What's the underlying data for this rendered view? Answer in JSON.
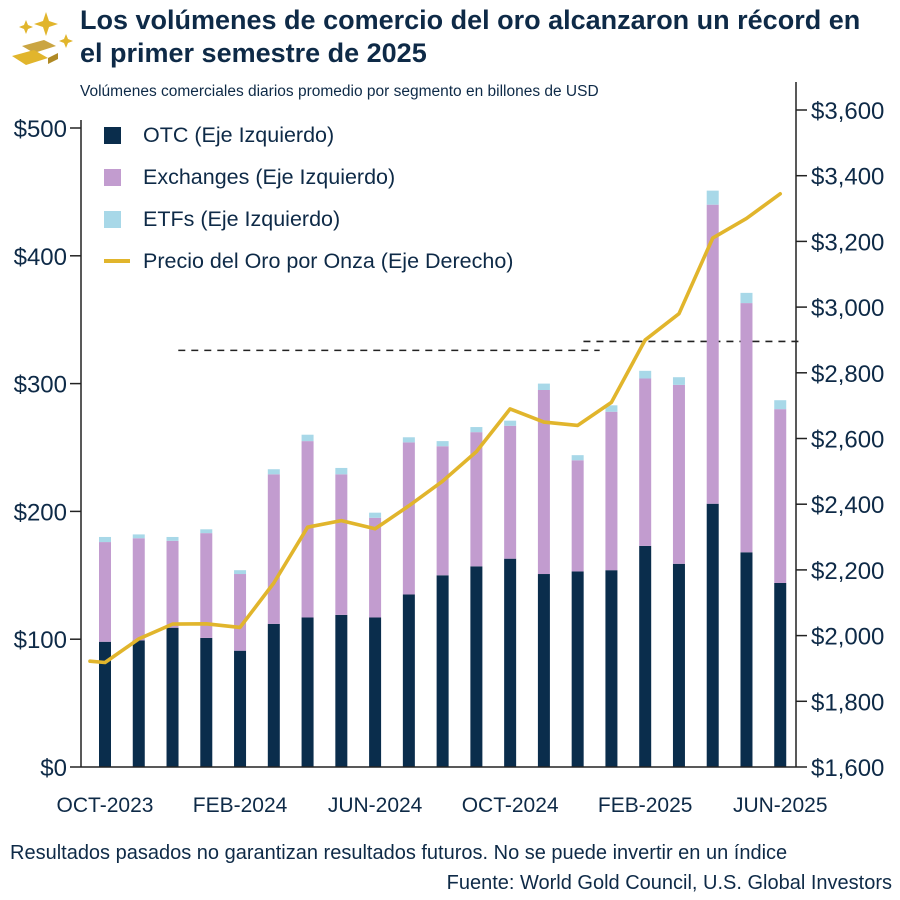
{
  "title": "Los volúmenes de comercio del oro alcanzaron un récord en el primer semestre de 2025",
  "subtitle": "Volúmenes comerciales diarios promedio por segmento en billones de USD",
  "footer": {
    "disclaimer": "Resultados pasados no garantizan resultados futuros. No se puede invertir en un índice",
    "source": "Fuente: World Gold Council, U.S. Global Investors"
  },
  "colors": {
    "otc": "#0a2d4c",
    "exchanges": "#c29ccf",
    "etfs": "#a8d8e8",
    "price": "#e1b52c",
    "text": "#0e2a47",
    "dashed": "#222222"
  },
  "logo_icon": "gold-bars-sparkle-icon",
  "chart_data": {
    "type": "bar",
    "stacked": true,
    "categories": [
      "Oct-2023",
      "Nov-2023",
      "Dec-2023",
      "Jan-2024",
      "Feb-2024",
      "Mar-2024",
      "Apr-2024",
      "May-2024",
      "Jun-2024",
      "Jul-2024",
      "Aug-2024",
      "Sep-2024",
      "Oct-2024",
      "Nov-2024",
      "Dec-2024",
      "Jan-2025",
      "Feb-2025",
      "Mar-2025",
      "Apr-2025",
      "May-2025",
      "Jun-2025"
    ],
    "x_tick_labels": [
      {
        "index": 0,
        "label": "OCT-2023"
      },
      {
        "index": 4,
        "label": "FEB-2024"
      },
      {
        "index": 8,
        "label": "JUN-2024"
      },
      {
        "index": 12,
        "label": "OCT-2024"
      },
      {
        "index": 16,
        "label": "FEB-2025"
      },
      {
        "index": 20,
        "label": "JUN-2025"
      }
    ],
    "series": [
      {
        "name": "OTC (Eje Izquierdo)",
        "key": "otc",
        "axis": "left",
        "values": [
          98,
          99,
          109,
          101,
          91,
          112,
          117,
          119,
          117,
          135,
          150,
          157,
          163,
          151,
          153,
          154,
          173,
          159,
          206,
          168,
          144
        ]
      },
      {
        "name": "Exchanges (Eje Izquierdo)",
        "key": "exchanges",
        "axis": "left",
        "values": [
          78,
          80,
          68,
          82,
          60,
          117,
          138,
          110,
          78,
          119,
          101,
          105,
          104,
          144,
          87,
          124,
          131,
          140,
          234,
          195,
          136
        ]
      },
      {
        "name": "ETFs (Eje Izquierdo)",
        "key": "etfs",
        "axis": "left",
        "values": [
          4,
          3,
          3,
          3,
          3,
          4,
          5,
          5,
          4,
          4,
          4,
          4,
          4,
          5,
          4,
          5,
          6,
          6,
          11,
          8,
          7
        ]
      },
      {
        "name": "Precio del Oro por Onza (Eje Derecho)",
        "key": "price",
        "axis": "right",
        "type": "line",
        "values": [
          1918,
          1990,
          2035,
          2036,
          2025,
          2160,
          2330,
          2350,
          2325,
          2395,
          2470,
          2560,
          2690,
          2650,
          2640,
          2710,
          2900,
          2980,
          3210,
          3270,
          3345
        ],
        "leading_value": 1922
      }
    ],
    "reference_lines": [
      {
        "axis": "left",
        "value": 326,
        "from_index": 3,
        "to_index": 14
      },
      {
        "axis": "left",
        "value": 333,
        "from_index": 15,
        "to_index": 20
      }
    ],
    "left_axis": {
      "ylim": [
        0,
        500
      ],
      "ticks": [
        0,
        100,
        200,
        300,
        400,
        500
      ],
      "tick_labels": [
        "$0",
        "$100",
        "$200",
        "$300",
        "$400",
        "$500"
      ]
    },
    "right_axis": {
      "ylim": [
        1600,
        3600
      ],
      "ticks": [
        1600,
        1800,
        2000,
        2200,
        2400,
        2600,
        2800,
        3000,
        3200,
        3400,
        3600
      ],
      "tick_labels": [
        "$1,600",
        "$1,800",
        "$2,000",
        "$2,200",
        "$2,400",
        "$2,600",
        "$2,800",
        "$3,000",
        "$3,200",
        "$3,400",
        "$3,600"
      ]
    },
    "legend": [
      "OTC (Eje Izquierdo)",
      "Exchanges (Eje Izquierdo)",
      "ETFs (Eje Izquierdo)",
      "Precio del Oro por Onza (Eje Derecho)"
    ],
    "legend_position": "top-left",
    "grid": false
  }
}
